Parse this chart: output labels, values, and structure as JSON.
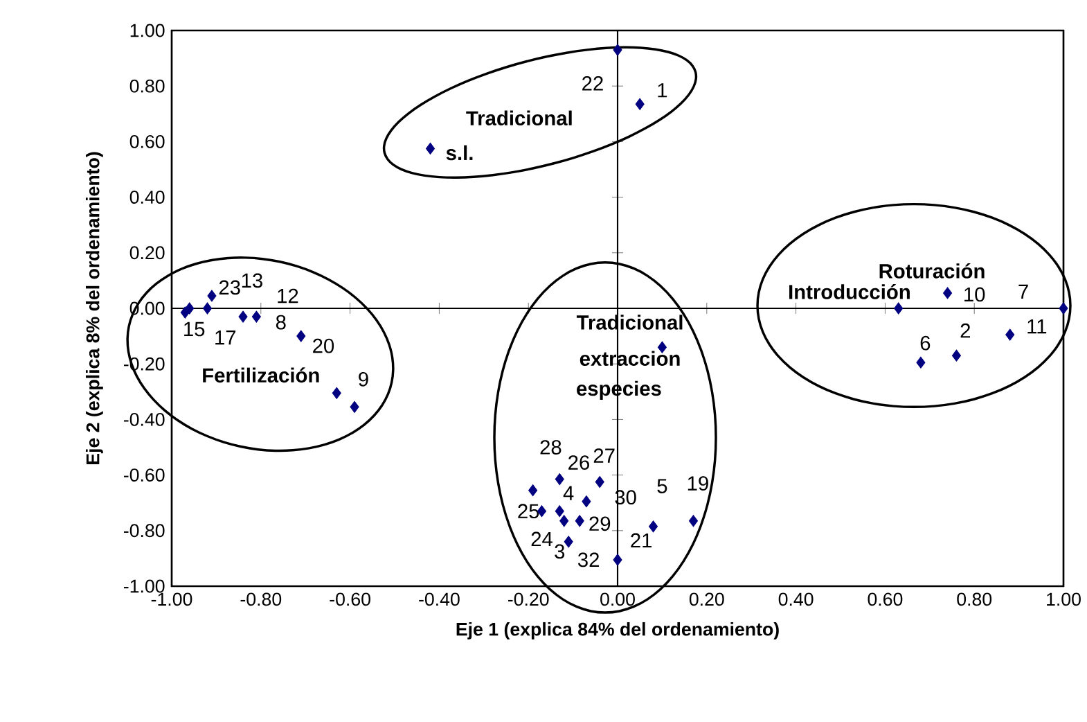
{
  "chart_data": {
    "type": "scatter",
    "xlabel": "Eje 1 (explica 84% del ordenamiento)",
    "ylabel": "Eje 2 (explica 8% del ordenamiento)",
    "x": [
      0.0,
      0.05,
      -0.42,
      -0.97,
      -0.96,
      -0.92,
      -0.91,
      -0.84,
      -0.81,
      -0.71,
      -0.63,
      -0.59,
      0.1,
      -0.19,
      -0.13,
      -0.04,
      -0.07,
      -0.17,
      -0.13,
      -0.12,
      -0.085,
      -0.11,
      0.0,
      0.08,
      0.17,
      0.63,
      0.74,
      1.0,
      0.88,
      0.76,
      0.68
    ],
    "values": [
      0.93,
      0.735,
      0.575,
      -0.015,
      0.0,
      0.0,
      0.045,
      -0.03,
      -0.03,
      -0.1,
      -0.305,
      -0.355,
      -0.14,
      -0.655,
      -0.615,
      -0.625,
      -0.695,
      -0.73,
      -0.73,
      -0.765,
      -0.765,
      -0.84,
      -0.905,
      -0.785,
      -0.765,
      0.0,
      0.055,
      0.0,
      -0.095,
      -0.17,
      -0.195
    ],
    "color": "#000080",
    "marker": "diamond",
    "xlim": [
      -1,
      1
    ],
    "ylim": [
      -1,
      1
    ],
    "xticks": [
      {
        "value": -1,
        "label": "-1.00"
      },
      {
        "value": -0.8,
        "label": "-0.80"
      },
      {
        "value": -0.6,
        "label": "-0.60"
      },
      {
        "value": -0.4,
        "label": "-0.40"
      },
      {
        "value": -0.2,
        "label": "-0.20"
      },
      {
        "value": 0,
        "label": "0.00"
      },
      {
        "value": 0.2,
        "label": "0.20"
      },
      {
        "value": 0.4,
        "label": "0.40"
      },
      {
        "value": 0.6,
        "label": "0.60"
      },
      {
        "value": 0.8,
        "label": "0.80"
      },
      {
        "value": 1,
        "label": "1.00"
      }
    ],
    "yticks": [
      {
        "value": -1,
        "label": "-1.00"
      },
      {
        "value": -0.8,
        "label": "-0.80"
      },
      {
        "value": -0.6,
        "label": "-0.60"
      },
      {
        "value": -0.4,
        "label": "-0.40"
      },
      {
        "value": -0.2,
        "label": "-0.20"
      },
      {
        "value": 0,
        "label": "0.00"
      },
      {
        "value": 0.2,
        "label": "0.20"
      },
      {
        "value": 0.4,
        "label": "0.40"
      },
      {
        "value": 0.6,
        "label": "0.60"
      },
      {
        "value": 0.8,
        "label": "0.80"
      },
      {
        "value": 1,
        "label": "1.00"
      }
    ],
    "annotations": [
      "Tradicional",
      "s.l.",
      "Fertilización",
      "Roturación",
      "Introducción",
      "Tradicional",
      "extraccion",
      "especies",
      "22",
      "1",
      "23",
      "13",
      "12",
      "15",
      "17",
      "8",
      "20",
      "9",
      "28",
      "26",
      "27",
      "4",
      "30",
      "25",
      "29",
      "24",
      "3",
      "32",
      "21",
      "5",
      "19",
      "10",
      "7",
      "2",
      "11",
      "6"
    ]
  }
}
